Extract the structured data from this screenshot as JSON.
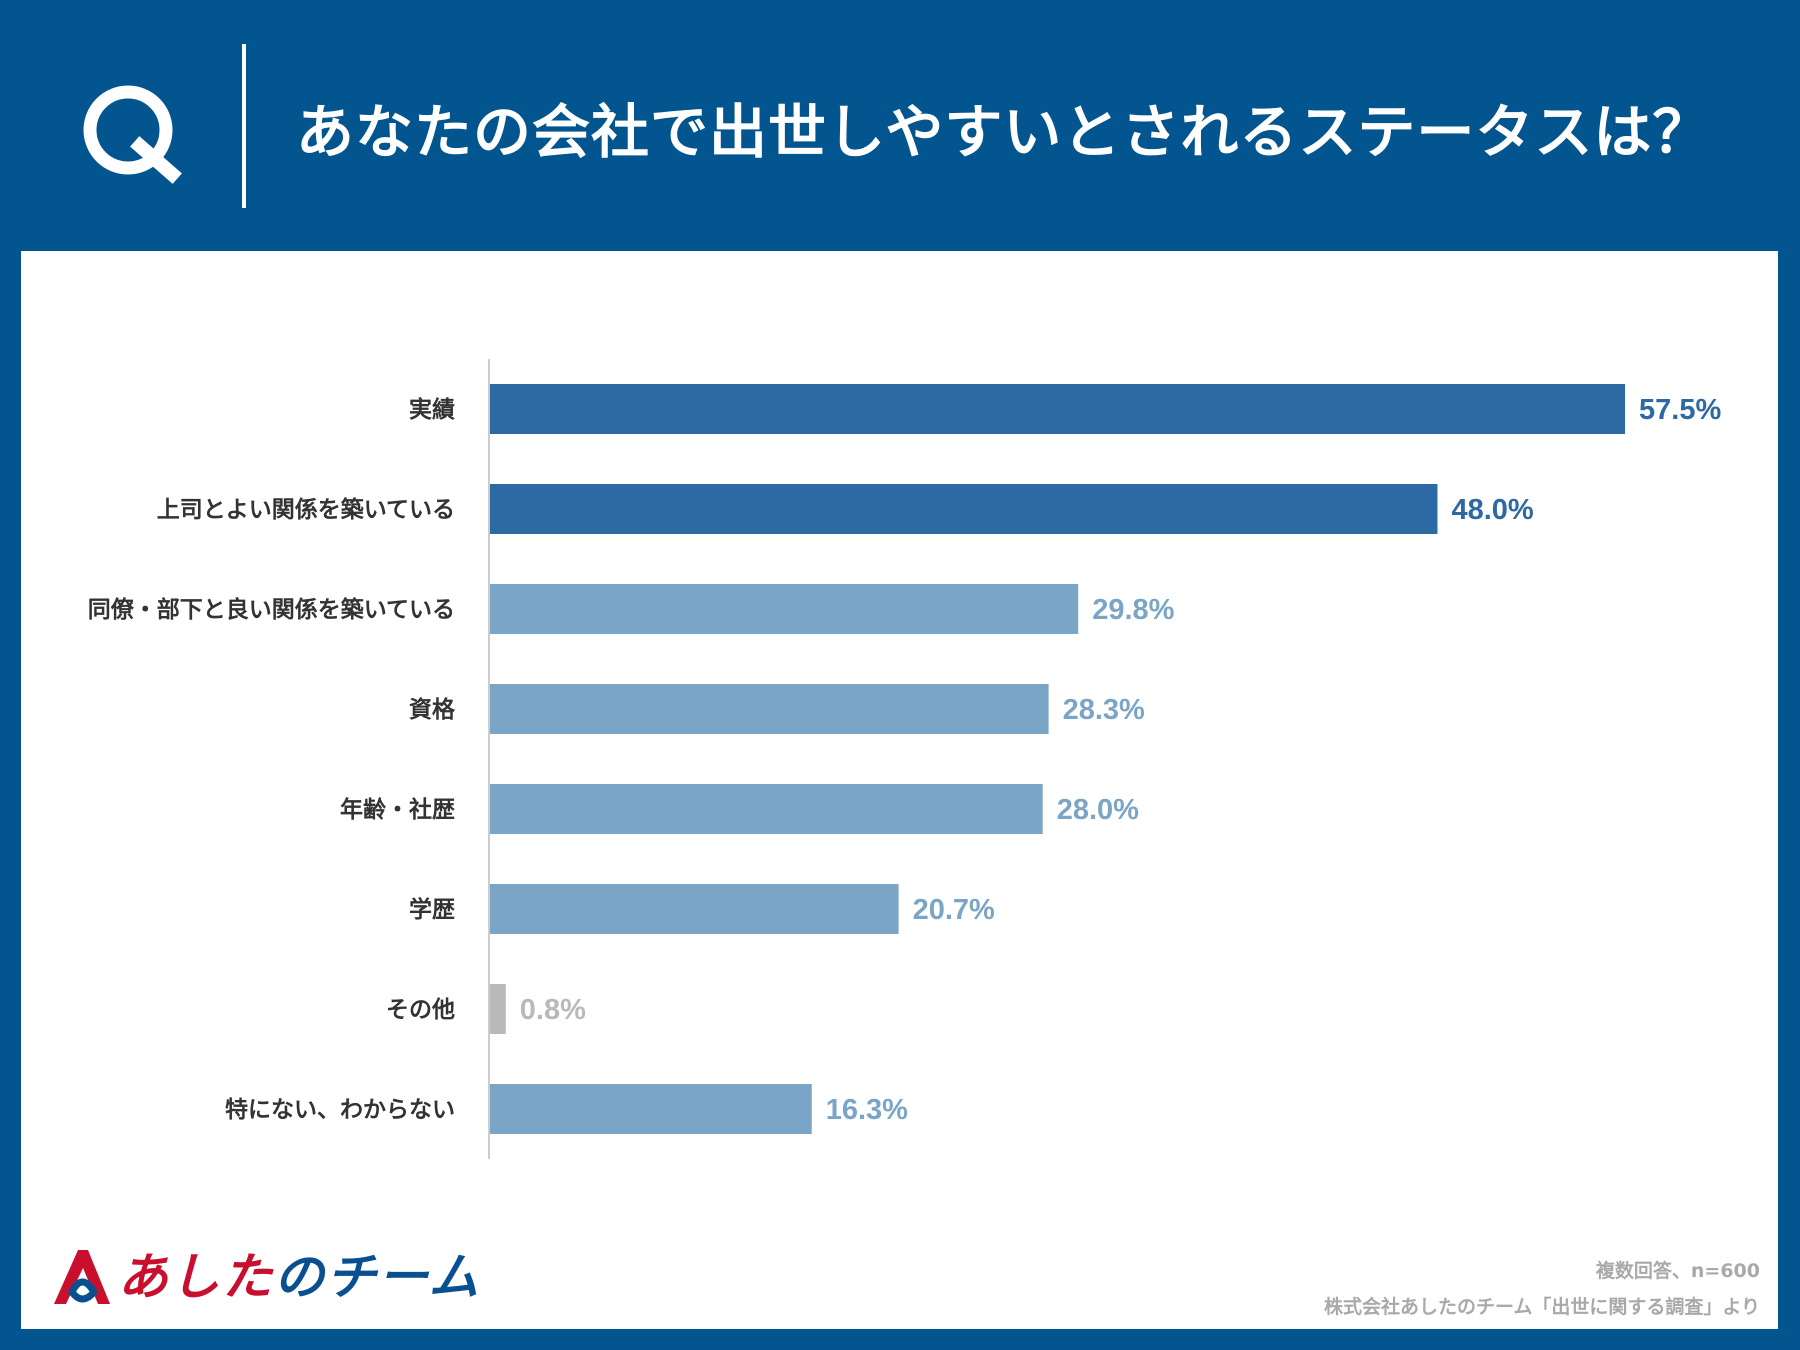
{
  "header": {
    "q_label": "Q",
    "title": "あなたの会社で出世しやすいとされるステータスは？"
  },
  "chart_data": {
    "type": "bar",
    "orientation": "horizontal",
    "title": "あなたの会社で出世しやすいとされるステータスは？",
    "categories": [
      "実績",
      "上司とよい関係を築いている",
      "同僚・部下と良い関係を築いている",
      "資格",
      "年齢・社歴",
      "学歴",
      "その他",
      "特にない、わからない"
    ],
    "values": [
      57.5,
      48.0,
      29.8,
      28.3,
      28.0,
      20.7,
      0.8,
      16.3
    ],
    "value_labels": [
      "57.5%",
      "48.0%",
      "29.8%",
      "28.3%",
      "28.0%",
      "20.7%",
      "0.8%",
      "16.3%"
    ],
    "highlight": [
      true,
      true,
      false,
      false,
      false,
      false,
      false,
      false
    ],
    "gray": [
      false,
      false,
      false,
      false,
      false,
      false,
      true,
      false
    ],
    "unit": "%",
    "xlim": [
      0,
      60
    ],
    "colors": {
      "highlight": "#2d69a3",
      "normal": "#7ba5c6",
      "gray": "#b9b9b9",
      "category_text": "#333333",
      "axis": "#cccccc"
    }
  },
  "logo": {
    "text_a": "あした",
    "text_b": "のチーム"
  },
  "notes": {
    "respondents": "複数回答、n=600",
    "source": "株式会社あしたのチーム「出世に関する調査」より"
  }
}
